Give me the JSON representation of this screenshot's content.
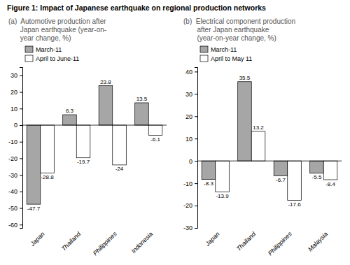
{
  "title": "Figure 1: Impact of Japanese earthquake on regional production networks",
  "chart_data": [
    {
      "type": "bar",
      "title": [
        "(a)  Automotive production after",
        "      Japan earthquake (year-on-",
        "      year change, %)"
      ],
      "categories": [
        "Japan",
        "Thailand",
        "Philippines",
        "Indonesia"
      ],
      "series": [
        {
          "name": "March-11",
          "color": "#a6a6a6",
          "values": [
            -47.7,
            6.3,
            23.8,
            13.5
          ]
        },
        {
          "name": "April to June-11",
          "color": "#ffffff",
          "values": [
            -28.8,
            -19.7,
            -24.0,
            -6.1
          ]
        }
      ],
      "ylim": [
        -62,
        35
      ],
      "yticks": [
        -60,
        -50,
        -40,
        -30,
        -20,
        -10,
        0,
        10,
        20,
        30
      ],
      "grid": false,
      "legend": "upper left",
      "data_labels": true
    },
    {
      "type": "bar",
      "title": [
        "(b)  Electrical component production",
        "       after Japan earthquake",
        "       (year-on-year change, %)"
      ],
      "categories": [
        "Japan",
        "Thailand",
        "Philippines",
        "Malaysia"
      ],
      "series": [
        {
          "name": "March-11",
          "color": "#a6a6a6",
          "values": [
            -8.3,
            35.5,
            -6.7,
            -5.5
          ]
        },
        {
          "name": "April to May 11",
          "color": "#ffffff",
          "values": [
            -13.9,
            13.2,
            -17.6,
            -8.4
          ]
        }
      ],
      "ylim": [
        -30,
        42
      ],
      "yticks": [
        -30,
        -20,
        -10,
        0,
        10,
        20,
        30,
        40
      ],
      "grid": false,
      "legend": "upper left",
      "data_labels": true
    }
  ]
}
